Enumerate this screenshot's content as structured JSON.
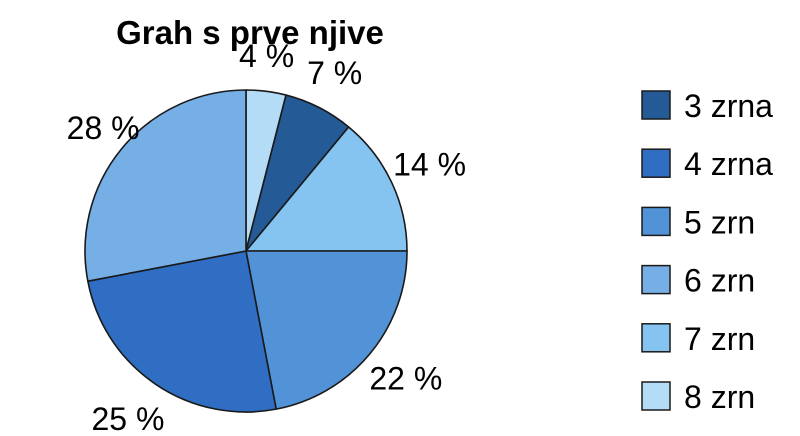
{
  "chart_data": {
    "type": "pie",
    "title": "Grah  s prve njive",
    "categories": [
      "3 zrna",
      "4 zrna",
      "5 zrn",
      "6 zrn",
      "7 zrn",
      "8 zrn"
    ],
    "values": [
      7,
      25,
      22,
      28,
      14,
      4
    ],
    "slice_labels": [
      "7 %",
      "25 %",
      "22 %",
      "28 %",
      "14 %",
      "4 %"
    ],
    "draw_order": [
      5,
      0,
      4,
      2,
      1,
      3
    ],
    "colors": [
      "#245a96",
      "#2f6ec2",
      "#5193d6",
      "#76aee6",
      "#85c3f0",
      "#b4dcf7"
    ],
    "legend_position": "right"
  }
}
